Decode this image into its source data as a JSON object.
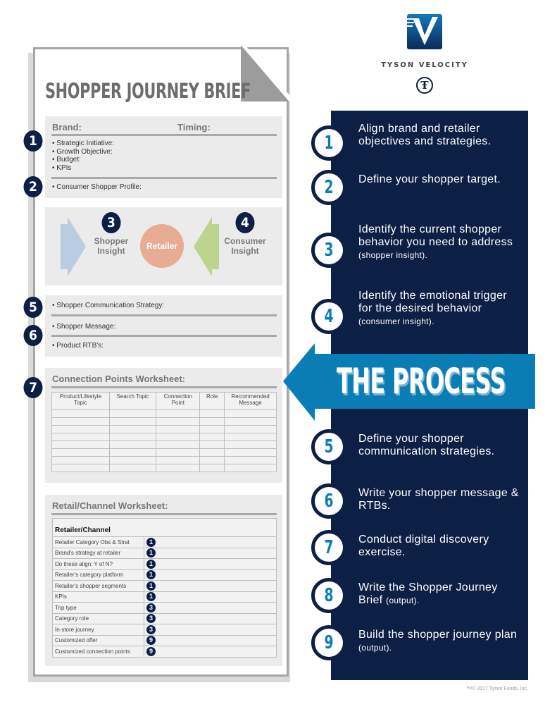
{
  "brand": {
    "name": "TYSON VELOCITY",
    "logo_icon": "velocity-v-logo",
    "seal_icon": "tyson-t-seal"
  },
  "brief": {
    "title": "SHOPPER JOURNEY BRIEF",
    "brand_label": "Brand:",
    "timing_label": "Timing:",
    "section1_items": [
      "• Strategic Initiative:",
      "• Growth Objective:",
      "• Budget:",
      "• KPIs"
    ],
    "section2_item": "• Consumer Shopper Profile:",
    "shopper_insight": [
      "Shopper",
      "Insight"
    ],
    "retailer": "Retailer",
    "consumer_insight": [
      "Consumer",
      "Insight"
    ],
    "comm_strategy": "• Shopper Communication Strategy:",
    "message": "• Shopper Message:",
    "rtbs": "• Product RTB's:",
    "markers": [
      "1",
      "2",
      "3",
      "4",
      "5",
      "6",
      "7"
    ]
  },
  "connection": {
    "title": "Connection Points Worksheet:",
    "columns": [
      [
        "Product/Lifestyle",
        "Topic"
      ],
      [
        "Search Topic",
        ""
      ],
      [
        "Connection",
        "Point"
      ],
      [
        "Role",
        ""
      ],
      [
        "Recommended",
        "Message"
      ]
    ],
    "empty_rows": 8
  },
  "retail": {
    "title": "Retail/Channel Worksheet:",
    "header": "Retailer/Channel",
    "rows": [
      {
        "label": "Retailer Category Obs & Strat",
        "step": "1"
      },
      {
        "label": "Brand's strategy at retailer",
        "step": "1"
      },
      {
        "label": "Do these align: Y of N?",
        "step": "1"
      },
      {
        "label": "Retailer's category platform",
        "step": "1"
      },
      {
        "label": "Retailer's shopper segments",
        "step": "1"
      },
      {
        "label": "KPIs",
        "step": "1"
      },
      {
        "label": "Trip type",
        "step": "3"
      },
      {
        "label": "Category role",
        "step": "3"
      },
      {
        "label": "In-store journey",
        "step": "3"
      },
      {
        "label": "Customized offer",
        "step": "9"
      },
      {
        "label": "Customized connection points",
        "step": "9"
      }
    ]
  },
  "process": {
    "banner": "THE PROCESS",
    "steps": [
      {
        "n": "1",
        "text": "Align brand and retailer objectives and strategies.",
        "note": ""
      },
      {
        "n": "2",
        "text": "Define your shopper target.",
        "note": ""
      },
      {
        "n": "3",
        "text": "Identify the current shopper behavior you need to address",
        "note": "(shopper insight)."
      },
      {
        "n": "4",
        "text": "Identify the emotional trigger for the desired behavior",
        "note": "(consumer insight)."
      },
      {
        "n": "5",
        "text": "Define your shopper communication strategies.",
        "note": ""
      },
      {
        "n": "6",
        "text": "Write your shopper message & RTBs.",
        "note": ""
      },
      {
        "n": "7",
        "text": "Conduct digital discovery exercise.",
        "note": ""
      },
      {
        "n": "8",
        "text": "Write the Shopper Journey Brief",
        "note": "(output)."
      },
      {
        "n": "9",
        "text": "Build the shopper journey plan",
        "note": "(output)."
      }
    ]
  },
  "footer": "™/© 2017 Tyson Foods, Inc.",
  "colors": {
    "navy": "#0c1f44",
    "blue": "#0a7db5",
    "gray_box": "#ebebeb",
    "retailer": "#e8ab94",
    "shopper_arrow": "#b9cde0",
    "consumer_arrow": "#bcd48f"
  }
}
